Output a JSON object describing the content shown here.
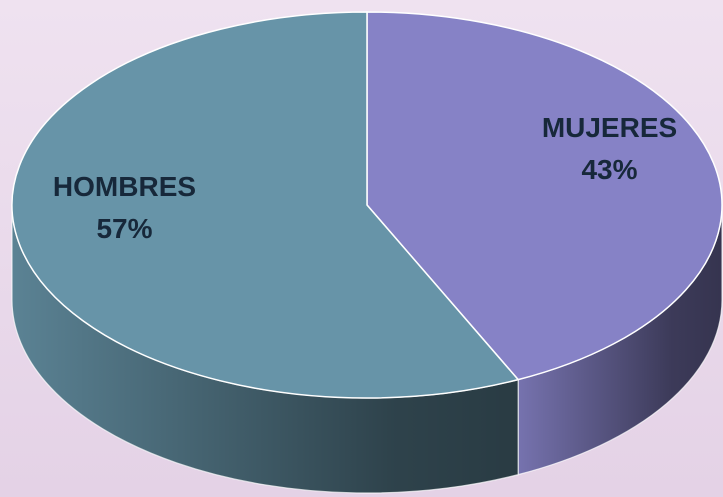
{
  "chart_data": {
    "type": "pie3d",
    "categories": [
      "MUJERES",
      "HOMBRES"
    ],
    "values": [
      43,
      57
    ],
    "value_labels": [
      "43%",
      "57%"
    ],
    "colors": [
      "#8682c6",
      "#6794a8"
    ]
  }
}
